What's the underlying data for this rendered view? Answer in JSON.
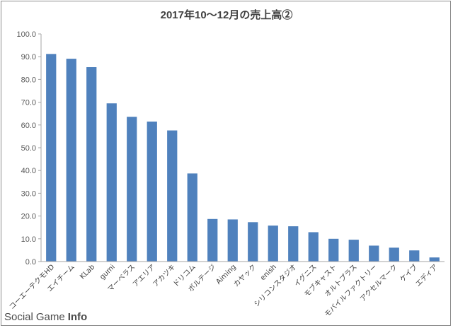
{
  "chart_data": {
    "type": "bar",
    "title": "2017年10～12月の売上高②",
    "xlabel": "",
    "ylabel": "",
    "ylim": [
      0,
      100
    ],
    "yticks": [
      "0.0",
      "10.0",
      "20.0",
      "30.0",
      "40.0",
      "50.0",
      "60.0",
      "70.0",
      "80.0",
      "90.0",
      "100.0"
    ],
    "grid": false,
    "legend": "none",
    "bar_color": "#4f81bd",
    "categories": [
      "コーエーテクモHD",
      "エイチーム",
      "KLab",
      "gumi",
      "マーベラス",
      "アエリア",
      "アカツキ",
      "ドリコム",
      "ボルテージ",
      "Aiming",
      "カヤック",
      "enish",
      "シリコンスタジオ",
      "イグニス",
      "モブキャスト",
      "オルトプラス",
      "モバイルファクトリー",
      "アクセルマーク",
      "ケイブ",
      "エディア"
    ],
    "values": [
      91.2,
      89.1,
      85.4,
      69.5,
      63.6,
      61.5,
      57.6,
      38.7,
      18.7,
      18.5,
      17.3,
      15.8,
      15.5,
      12.9,
      10.0,
      9.6,
      7.0,
      6.1,
      4.9,
      1.8
    ]
  },
  "watermark": {
    "part1": "Social",
    "part2": "Game",
    "part3": "Info"
  }
}
